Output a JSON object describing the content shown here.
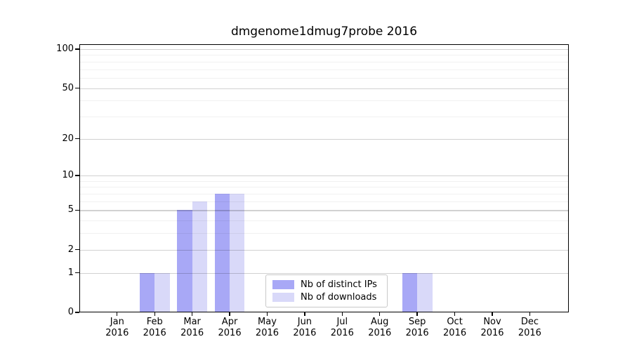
{
  "title": "dmgenome1dmug7probe 2016",
  "colors": {
    "background": "#ffffff",
    "axis": "#000000",
    "grid_major": "#d4d4d4",
    "grid_minor": "#f0f0f0",
    "distinct_ips": "#a8a8f6",
    "downloads": "#d9d9f9",
    "legend_border": "#c9c9c9"
  },
  "chart_data": {
    "type": "bar",
    "title": "dmgenome1dmug7probe 2016",
    "xlabel": "",
    "ylabel": "",
    "months": [
      "Jan",
      "Feb",
      "Mar",
      "Apr",
      "May",
      "Jun",
      "Jul",
      "Aug",
      "Sep",
      "Oct",
      "Nov",
      "Dec"
    ],
    "year": "2016",
    "categories": [
      "Jan 2016",
      "Feb 2016",
      "Mar 2016",
      "Apr 2016",
      "May 2016",
      "Jun 2016",
      "Jul 2016",
      "Aug 2016",
      "Sep 2016",
      "Oct 2016",
      "Nov 2016",
      "Dec 2016"
    ],
    "series": [
      {
        "name": "Nb of distinct IPs",
        "color": "#a8a8f6",
        "values": [
          0,
          1,
          5,
          7,
          0,
          0,
          0,
          0,
          1,
          0,
          0,
          0
        ]
      },
      {
        "name": "Nb of downloads",
        "color": "#d9d9f9",
        "values": [
          0,
          1,
          6,
          7,
          0,
          0,
          0,
          0,
          1,
          0,
          0,
          0
        ]
      }
    ],
    "yscale": "log1p",
    "ylim": [
      0,
      109
    ],
    "y_major_ticks": [
      0,
      1,
      2,
      5,
      10,
      20,
      50,
      100
    ],
    "y_minor_gridlines": [
      3,
      4,
      6,
      7,
      8,
      9,
      30,
      40,
      60,
      70,
      80,
      90
    ],
    "grid": true,
    "legend_position": "lower-center"
  }
}
